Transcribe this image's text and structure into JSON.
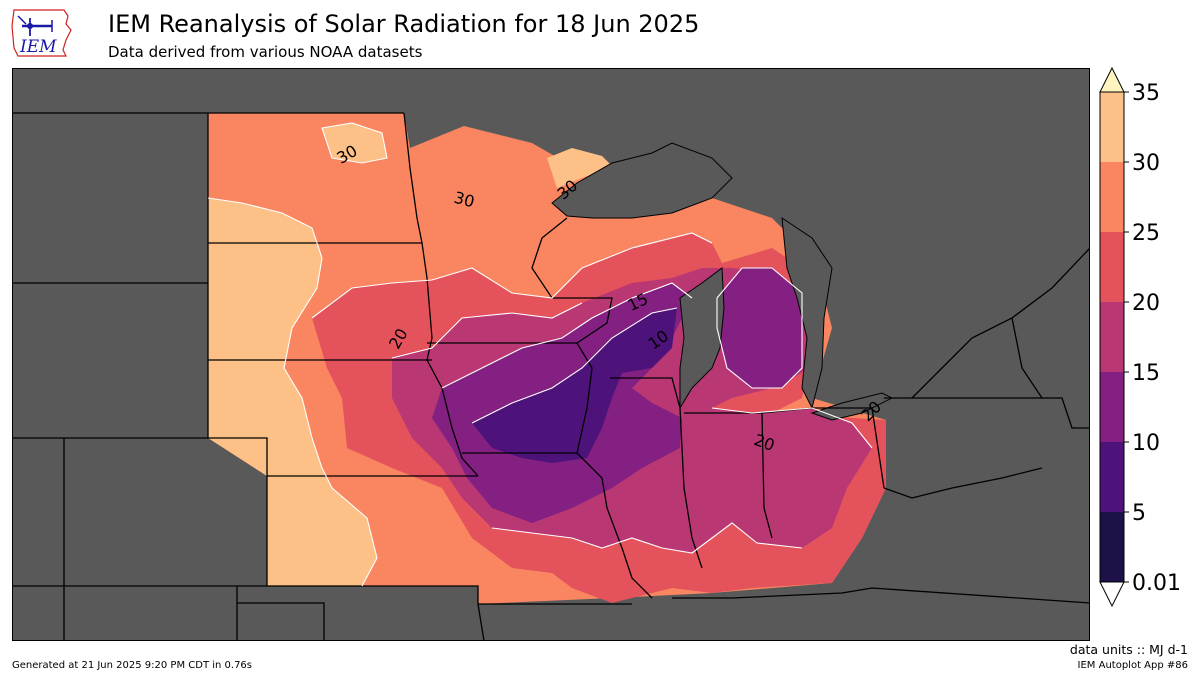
{
  "header": {
    "title": "IEM Reanalysis of Solar Radiation for 18 Jun 2025",
    "subtitle": "Data derived from various NOAA datasets",
    "logo_text": "IEM"
  },
  "colors": {
    "ocean_nodata": "#595959",
    "lake": "#595959",
    "state_border": "#000000",
    "contour_line": "#ffffff"
  },
  "map": {
    "contour_labels": [
      {
        "text": "30"
      },
      {
        "text": "30"
      },
      {
        "text": "30"
      },
      {
        "text": "20"
      },
      {
        "text": "15"
      },
      {
        "text": "10"
      },
      {
        "text": "20"
      },
      {
        "text": "20"
      }
    ]
  },
  "colorbar": {
    "levels": [
      {
        "label": "35",
        "color": "#fef0b6"
      },
      {
        "label": "30",
        "color": "#fdc087"
      },
      {
        "label": "25",
        "color": "#f98661"
      },
      {
        "label": "20",
        "color": "#e4525c"
      },
      {
        "label": "15",
        "color": "#b93874"
      },
      {
        "label": "10",
        "color": "#842081"
      },
      {
        "label": "5",
        "color": "#4e137b"
      },
      {
        "label": "0.01",
        "color": "#1d1147"
      }
    ],
    "over_color": "#fef4c0",
    "under_color": "#ffffff"
  },
  "footer": {
    "units": "data units :: MJ d-1",
    "generated": "Generated at 21 Jun 2025 9:20 PM CDT in 0.76s",
    "app": "IEM Autoplot App #86"
  }
}
